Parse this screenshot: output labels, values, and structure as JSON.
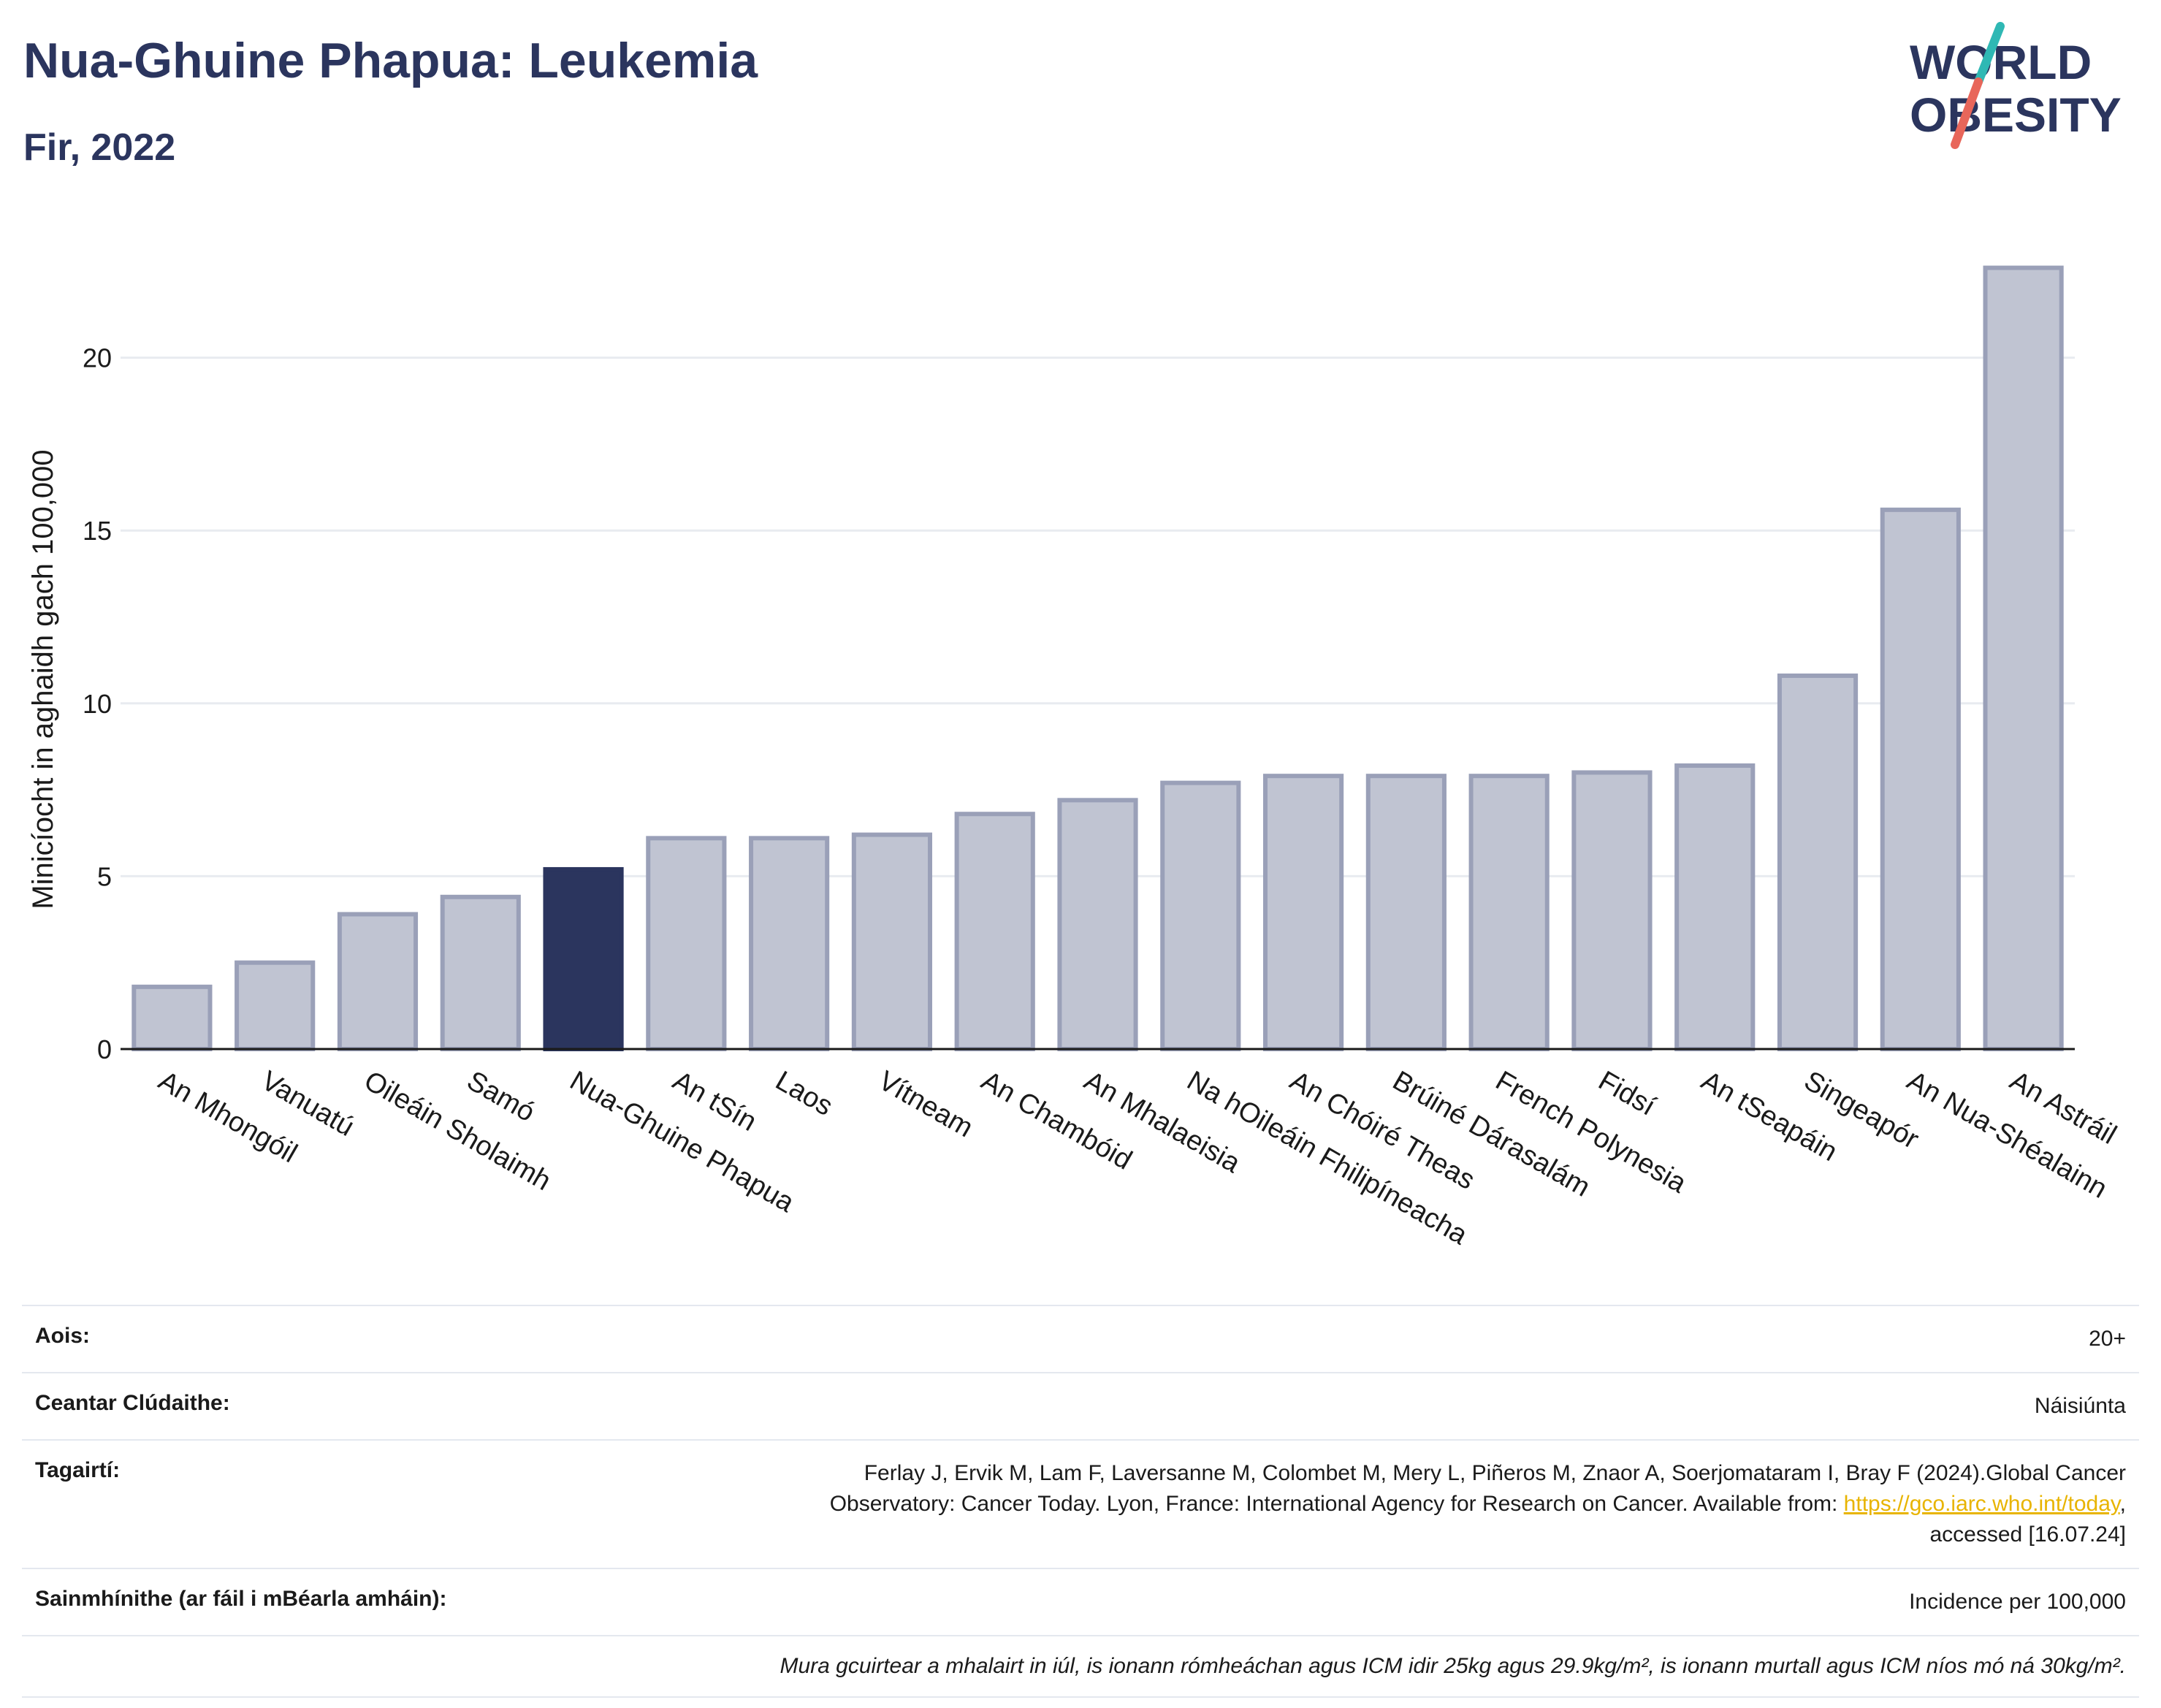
{
  "title": "Nua-Ghuine Phapua: Leukemia",
  "subtitle": "Fir, 2022",
  "logo": {
    "line1": "WORLD",
    "line2": "OBESITY",
    "text_color": "#2b355e",
    "slash_colors": [
      "#2fb8b4",
      "#e8665a"
    ]
  },
  "colors": {
    "highlight": "#2b355e",
    "bar_fill": "#c0c4d2",
    "bar_stroke": "#9aa0b8",
    "grid": "#e8ebf0",
    "link": "#e8b400"
  },
  "chart_data": {
    "type": "bar",
    "ylabel": "Minicíocht in aghaidh gach 100,000",
    "xlabel": "",
    "ylim": [
      0,
      23.5
    ],
    "yticks": [
      0,
      5,
      10,
      15,
      20
    ],
    "grid": true,
    "highlight_category": "Nua-Ghuine Phapua",
    "categories": [
      "An Mhongóil",
      "Vanuatú",
      "Oileáin Sholaimh",
      "Samó",
      "Nua-Ghuine Phapua",
      "An tSín",
      "Laos",
      "Vítneam",
      "An Chambóid",
      "An Mhalaeisia",
      "Na hOileáin Fhilipíneacha",
      "An Chóiré Theas",
      "Brúiné Dárasalám",
      "French Polynesia",
      "Fidsí",
      "An tSeapáin",
      "Singeapór",
      "An Nua-Shéalainn",
      "An Astráil"
    ],
    "values": [
      1.8,
      2.5,
      3.9,
      4.4,
      5.2,
      6.1,
      6.1,
      6.2,
      6.8,
      7.2,
      7.7,
      7.9,
      7.9,
      7.9,
      8.0,
      8.2,
      10.8,
      15.6,
      22.6
    ]
  },
  "meta": {
    "age_label": "Aois:",
    "age_value": "20+",
    "coverage_label": "Ceantar Clúdaithe:",
    "coverage_value": "Náisiúnta",
    "references_label": "Tagairtí:",
    "references_line1": "Ferlay J, Ervik M, Lam F, Laversanne M, Colombet M, Mery L, Piñeros M, Znaor A, Soerjomataram I, Bray F (2024).Global Cancer",
    "references_line2": "Observatory: Cancer Today. Lyon, France: International Agency for Research on Cancer. Available from: ",
    "references_link": "https://gco.iarc.who.int/today",
    "references_line3": "accessed [16.07.24]",
    "definitions_label": "Sainmhínithe (ar fáil i mBéarla amháin):",
    "definitions_value": "Incidence per 100,000",
    "note": "Mura gcuirtear a mhalairt in iúl, is ionann rómheáchan agus ICM idir 25kg agus 29.9kg/m², is ionann murtall agus ICM níos mó ná 30kg/m²."
  }
}
